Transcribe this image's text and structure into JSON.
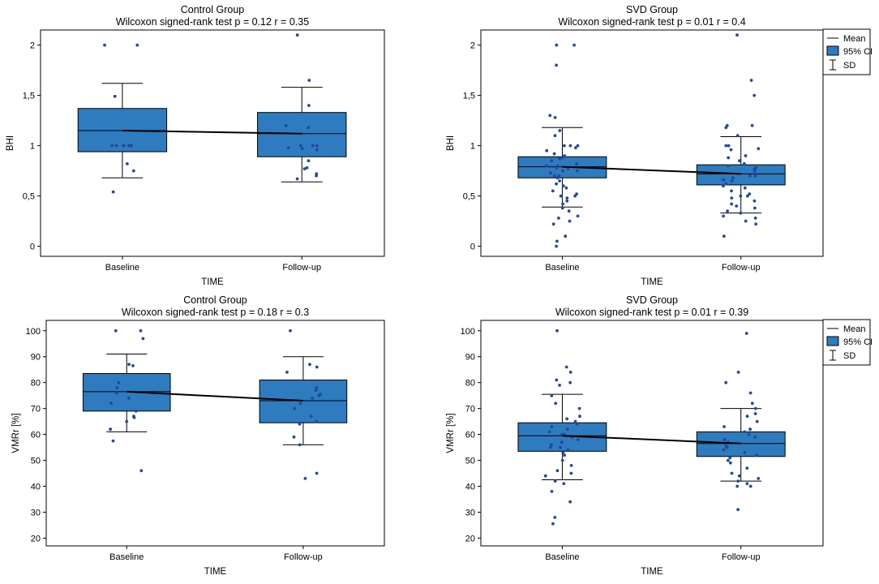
{
  "x_categories": [
    "Baseline",
    "Follow-up"
  ],
  "legend": {
    "mean": "Mean",
    "ci": "95% CI",
    "sd": "SD"
  },
  "colors": {
    "box_fill": "#2e7bbf",
    "point": "#1f4aa0",
    "line": "#000000"
  },
  "chart_data": [
    {
      "type": "box",
      "title": "Control Group",
      "subtitle": "Wilcoxon signed-rank test  p = 0.12  r = 0.35",
      "xlabel": "TIME",
      "ylabel": "BHI",
      "ylim": [
        -0.1,
        2.15
      ],
      "yticks": [
        0,
        0.5,
        1,
        1.5,
        2
      ],
      "yticklabels": [
        "0",
        "0,5",
        "1",
        "1,5",
        "2"
      ],
      "show_legend": false,
      "groups": [
        {
          "name": "Baseline",
          "mean": 1.15,
          "ci_low": 0.94,
          "ci_high": 1.37,
          "sd_low": 0.68,
          "sd_high": 1.62,
          "points": [
            2.0,
            2.0,
            1.49,
            1.0,
            1.0,
            1.0,
            1.0,
            1.0,
            1.0,
            1.0,
            1.0,
            0.82,
            0.75,
            0.54
          ]
        },
        {
          "name": "Follow-up",
          "mean": 1.12,
          "ci_low": 0.89,
          "ci_high": 1.33,
          "sd_low": 0.64,
          "sd_high": 1.58,
          "points": [
            2.1,
            1.65,
            1.4,
            1.2,
            1.18,
            1.0,
            1.0,
            1.0,
            0.98,
            0.97,
            0.96,
            0.85,
            0.78,
            0.77,
            0.72,
            0.7,
            0.67
          ]
        }
      ]
    },
    {
      "type": "box",
      "title": "SVD Group",
      "subtitle": "Wilcoxon signed-rank test p = 0.01  r = 0.4",
      "xlabel": "TIME",
      "ylabel": "BHI",
      "ylim": [
        -0.1,
        2.15
      ],
      "yticks": [
        0,
        0.5,
        1,
        1.5,
        2
      ],
      "yticklabels": [
        "0",
        "0,5",
        "1",
        "1,5",
        "2"
      ],
      "show_legend": true,
      "groups": [
        {
          "name": "Baseline",
          "mean": 0.79,
          "ci_low": 0.68,
          "ci_high": 0.89,
          "sd_low": 0.39,
          "sd_high": 1.18,
          "points": [
            2.0,
            2.0,
            1.8,
            1.3,
            1.28,
            1.15,
            1.1,
            1.0,
            1.0,
            1.0,
            0.98,
            0.95,
            0.92,
            0.9,
            0.88,
            0.87,
            0.85,
            0.82,
            0.8,
            0.8,
            0.78,
            0.77,
            0.75,
            0.75,
            0.73,
            0.7,
            0.7,
            0.68,
            0.65,
            0.62,
            0.6,
            0.58,
            0.55,
            0.52,
            0.5,
            0.5,
            0.48,
            0.45,
            0.42,
            0.38,
            0.35,
            0.3,
            0.28,
            0.25,
            0.22,
            0.1,
            0.05,
            0.0
          ]
        },
        {
          "name": "Follow-up",
          "mean": 0.72,
          "ci_low": 0.61,
          "ci_high": 0.81,
          "sd_low": 0.33,
          "sd_high": 1.09,
          "points": [
            2.1,
            1.65,
            1.5,
            1.2,
            1.2,
            1.18,
            1.1,
            1.0,
            1.0,
            0.97,
            0.96,
            0.9,
            0.88,
            0.85,
            0.82,
            0.8,
            0.78,
            0.77,
            0.75,
            0.72,
            0.7,
            0.7,
            0.68,
            0.66,
            0.65,
            0.62,
            0.6,
            0.58,
            0.55,
            0.52,
            0.5,
            0.5,
            0.48,
            0.45,
            0.42,
            0.4,
            0.38,
            0.35,
            0.33,
            0.3,
            0.28,
            0.25,
            0.22,
            0.1
          ]
        }
      ]
    },
    {
      "type": "box",
      "title": "Control Group",
      "subtitle": "Wilcoxon signed-rank test p = 0.18  r = 0.3",
      "xlabel": "TIME",
      "ylabel": "VMRr [%]",
      "ylim": [
        17,
        104
      ],
      "yticks": [
        20,
        30,
        40,
        50,
        60,
        70,
        80,
        90,
        100
      ],
      "yticklabels": [
        "20",
        "30",
        "40",
        "50",
        "60",
        "70",
        "80",
        "90",
        "100"
      ],
      "show_legend": false,
      "groups": [
        {
          "name": "Baseline",
          "mean": 76.5,
          "ci_low": 69,
          "ci_high": 83.5,
          "sd_low": 61,
          "sd_high": 91,
          "points": [
            100,
            100,
            97,
            87,
            86.5,
            80,
            78,
            76,
            74,
            72,
            69,
            67,
            66.5,
            65,
            62,
            57.5,
            46
          ]
        },
        {
          "name": "Follow-up",
          "mean": 73,
          "ci_low": 64.5,
          "ci_high": 81,
          "sd_low": 56,
          "sd_high": 90,
          "points": [
            100,
            87,
            86,
            84,
            78,
            77,
            75.5,
            75,
            74,
            72,
            70,
            67,
            65,
            64,
            59,
            56,
            45,
            43
          ]
        }
      ]
    },
    {
      "type": "box",
      "title": "SVD Group",
      "subtitle": "Wilcoxon signed-rank test p = 0.01  r = 0.39",
      "xlabel": "TIME",
      "ylabel": "VMRr [%]",
      "ylim": [
        17,
        104
      ],
      "yticks": [
        20,
        30,
        40,
        50,
        60,
        70,
        80,
        90,
        100
      ],
      "yticklabels": [
        "20",
        "30",
        "40",
        "50",
        "60",
        "70",
        "80",
        "90",
        "100"
      ],
      "show_legend": true,
      "groups": [
        {
          "name": "Baseline",
          "mean": 59.5,
          "ci_low": 53.5,
          "ci_high": 64.5,
          "sd_low": 42.5,
          "sd_high": 75.5,
          "points": [
            100,
            86,
            84,
            81,
            80,
            79,
            75,
            72,
            70,
            67,
            66,
            65,
            64,
            63,
            62,
            61,
            60,
            60,
            59,
            58,
            57,
            56,
            55,
            55,
            54,
            53,
            52,
            50,
            48,
            46,
            45,
            44,
            42,
            41,
            38,
            34,
            28,
            25.5
          ]
        },
        {
          "name": "Follow-up",
          "mean": 56.5,
          "ci_low": 51.5,
          "ci_high": 61,
          "sd_low": 42,
          "sd_high": 70,
          "points": [
            99,
            84,
            80,
            76,
            72,
            70,
            68,
            67,
            65,
            63,
            62,
            61,
            60,
            59,
            58,
            57,
            56,
            55,
            55,
            54,
            53,
            52,
            51,
            50,
            49,
            47,
            45,
            44,
            43,
            42,
            41,
            40,
            40,
            31
          ]
        }
      ]
    }
  ]
}
